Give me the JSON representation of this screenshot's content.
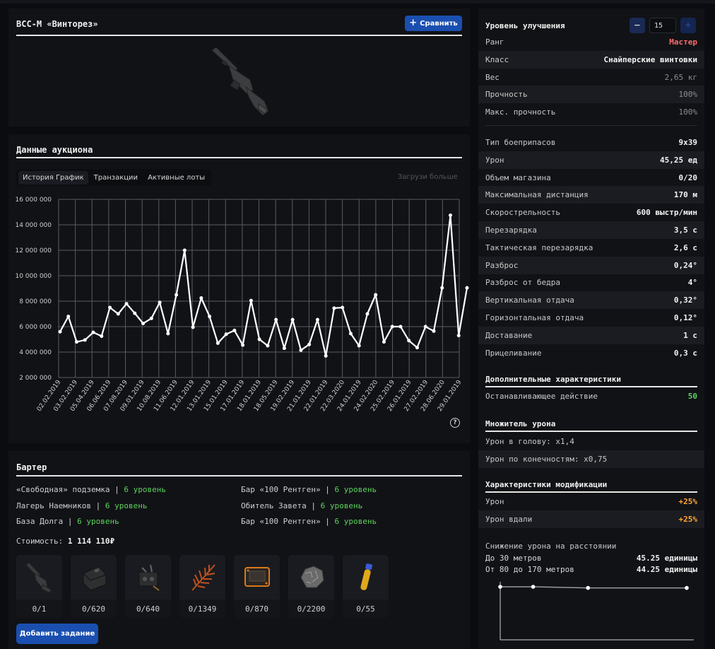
{
  "item": {
    "title": "ВСС-М «Винторез»",
    "compare_label": "Сравнить"
  },
  "auction": {
    "title": "Данные аукциона",
    "tabs": [
      "История График",
      "Транзакции",
      "Активные лоты"
    ],
    "load_more": "Загрузи больше"
  },
  "chart_data": {
    "type": "line",
    "title": "",
    "xlabel": "",
    "ylabel": "",
    "ylim": [
      2000000,
      16000000
    ],
    "yticks": [
      "2 000 000",
      "4 000 000",
      "6 000 000",
      "8 000 000",
      "10 000 000",
      "12 000 000",
      "14 000 000",
      "16 000 000"
    ],
    "ytick_values": [
      2000000,
      4000000,
      6000000,
      8000000,
      10000000,
      12000000,
      14000000,
      16000000
    ],
    "xtick_labels": [
      "02.02.2019",
      "03.02.2019",
      "05.04.2019",
      "06.06.2019",
      "07.08.2019",
      "09.01.2019",
      "10.08.2019",
      "11.06.2019",
      "12.01.2019",
      "13.01.2019",
      "15.01.2019",
      "17.01.2019",
      "18.01.2019",
      "18.05.2019",
      "19.02.2019",
      "21.01.2019",
      "22.01.2019",
      "22.03.2020",
      "24.01.2019",
      "24.02.2020",
      "25.02.2019",
      "26.01.2019",
      "27.02.2019",
      "28.06.2020",
      "29.01.2019"
    ],
    "grid": true,
    "series": [
      {
        "values": [
          5600000,
          6800000,
          4800000,
          4950000,
          5550000,
          5250000,
          7500000,
          7000000,
          7800000,
          7050000,
          6250000,
          6650000,
          7900000,
          5450000,
          8500000,
          12000000,
          5950000,
          8250000,
          6800000,
          4700000,
          5400000,
          5700000,
          4550000,
          8050000,
          5000000,
          4500000,
          6550000,
          4300000,
          6550000,
          4150000,
          4600000,
          6550000,
          3700000,
          7450000,
          7500000,
          5450000,
          4500000,
          7000000,
          8500000,
          4800000,
          6000000,
          6000000,
          4900000,
          4350000,
          6000000,
          5650000,
          9050000,
          14750000,
          5300000,
          9050000
        ]
      }
    ]
  },
  "barter": {
    "title": "Бартер",
    "left": [
      {
        "place": "«Свободная» подземка",
        "level": "6 уровень"
      },
      {
        "place": "Лагерь Наемников",
        "level": "6 уровень"
      },
      {
        "place": "База Долга",
        "level": "6 уровень"
      }
    ],
    "right": [
      {
        "place": "Бар «100 Рентген»",
        "level": "6 уровень"
      },
      {
        "place": "Обитель Завета",
        "level": "6 уровень"
      },
      {
        "place": "Бар «100 Рентген»",
        "level": "6 уровень"
      }
    ],
    "separator": "|",
    "cost_label": "Стоимость:",
    "cost_value": "1 114 110₽",
    "items": [
      "0/1",
      "0/620",
      "0/640",
      "0/1349",
      "0/870",
      "0/2200",
      "0/55"
    ],
    "add_task_label": "Добавить задание"
  },
  "stats": {
    "upgrade_label": "Уровень улучшения",
    "upgrade_value": "15",
    "minus": "−",
    "plus": "+",
    "basic": [
      {
        "k": "Ранг",
        "v": "Мастер"
      },
      {
        "k": "Класс",
        "v": "Снайперские винтовки"
      },
      {
        "k": "Вес",
        "v": "2,65 кг"
      },
      {
        "k": "Прочность",
        "v": "100%"
      },
      {
        "k": "Макс. прочность",
        "v": "100%"
      }
    ],
    "weapon": [
      {
        "k": "Тип боеприпасов",
        "v": "9x39"
      },
      {
        "k": "Урон",
        "v": "45,25 ед"
      },
      {
        "k": "Объем магазина",
        "v": "0/20"
      },
      {
        "k": "Максимальная дистанция",
        "v": "170 м"
      },
      {
        "k": "Скорострельность",
        "v": "600 выстр/мин"
      },
      {
        "k": "Перезарядка",
        "v": "3,5 с"
      },
      {
        "k": "Тактическая перезарядка",
        "v": "2,6 с"
      },
      {
        "k": "Разброс",
        "v": "0,24°"
      },
      {
        "k": "Разброс от бедра",
        "v": "4°"
      },
      {
        "k": "Вертикальная отдача",
        "v": "0,32°"
      },
      {
        "k": "Горизонтальная отдача",
        "v": "0,12°"
      },
      {
        "k": "Доставание",
        "v": "1 с"
      },
      {
        "k": "Прицеливание",
        "v": "0,3 с"
      }
    ],
    "extra_title": "Дополнительные характеристики",
    "extra": [
      {
        "k": "Останавливающее действие",
        "v": "50"
      }
    ],
    "mult_title": "Множитель урона",
    "mult": [
      {
        "k": "Урон в голову: x1,4"
      },
      {
        "k": "Урон по конечностям: x0,75"
      }
    ],
    "mod_title": "Характеристики модификации",
    "mod": [
      {
        "k": "Урон",
        "v": "+25%"
      },
      {
        "k": "Урон вдали",
        "v": "+25%"
      }
    ],
    "drop_title": "Снижение урона на расстоянии",
    "drop": [
      {
        "k": "До 30 метров",
        "v": "45.25 единицы"
      },
      {
        "k": "От 80 до 170 метров",
        "v": "44.25 единицы"
      }
    ],
    "drop_chart": {
      "type": "line",
      "x": [
        0,
        30,
        80,
        170
      ],
      "y": [
        45.25,
        45.25,
        44.25,
        44.25
      ]
    }
  },
  "colors": {
    "accent": "#1a4fb0",
    "level_green": "#5dd35d",
    "rank_red": "#ff6a6a",
    "mod_orange": "#ffa534"
  }
}
